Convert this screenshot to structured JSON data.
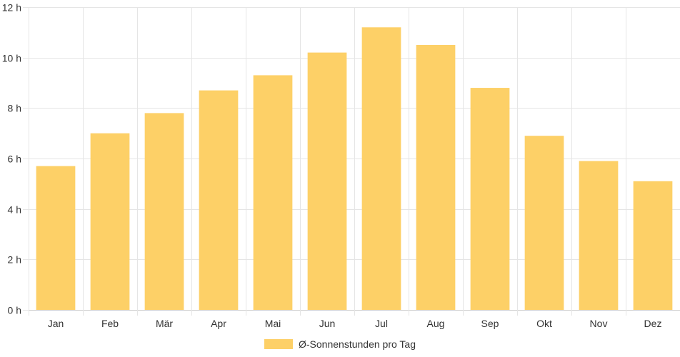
{
  "chart_data": {
    "type": "bar",
    "categories": [
      "Jan",
      "Feb",
      "Mär",
      "Apr",
      "Mai",
      "Jun",
      "Jul",
      "Aug",
      "Sep",
      "Okt",
      "Nov",
      "Dez"
    ],
    "series": [
      {
        "name": "Ø-Sonnenstunden pro Tag",
        "values": [
          5.7,
          7.0,
          7.8,
          8.7,
          9.3,
          10.2,
          11.2,
          10.5,
          8.8,
          6.9,
          5.9,
          5.1
        ],
        "color": "#fdd067"
      }
    ],
    "ylim": [
      0,
      12
    ],
    "yticks": [
      0,
      2,
      4,
      6,
      8,
      10,
      12
    ],
    "y_tick_suffix": " h",
    "grid": true,
    "legend_position": "bottom"
  }
}
